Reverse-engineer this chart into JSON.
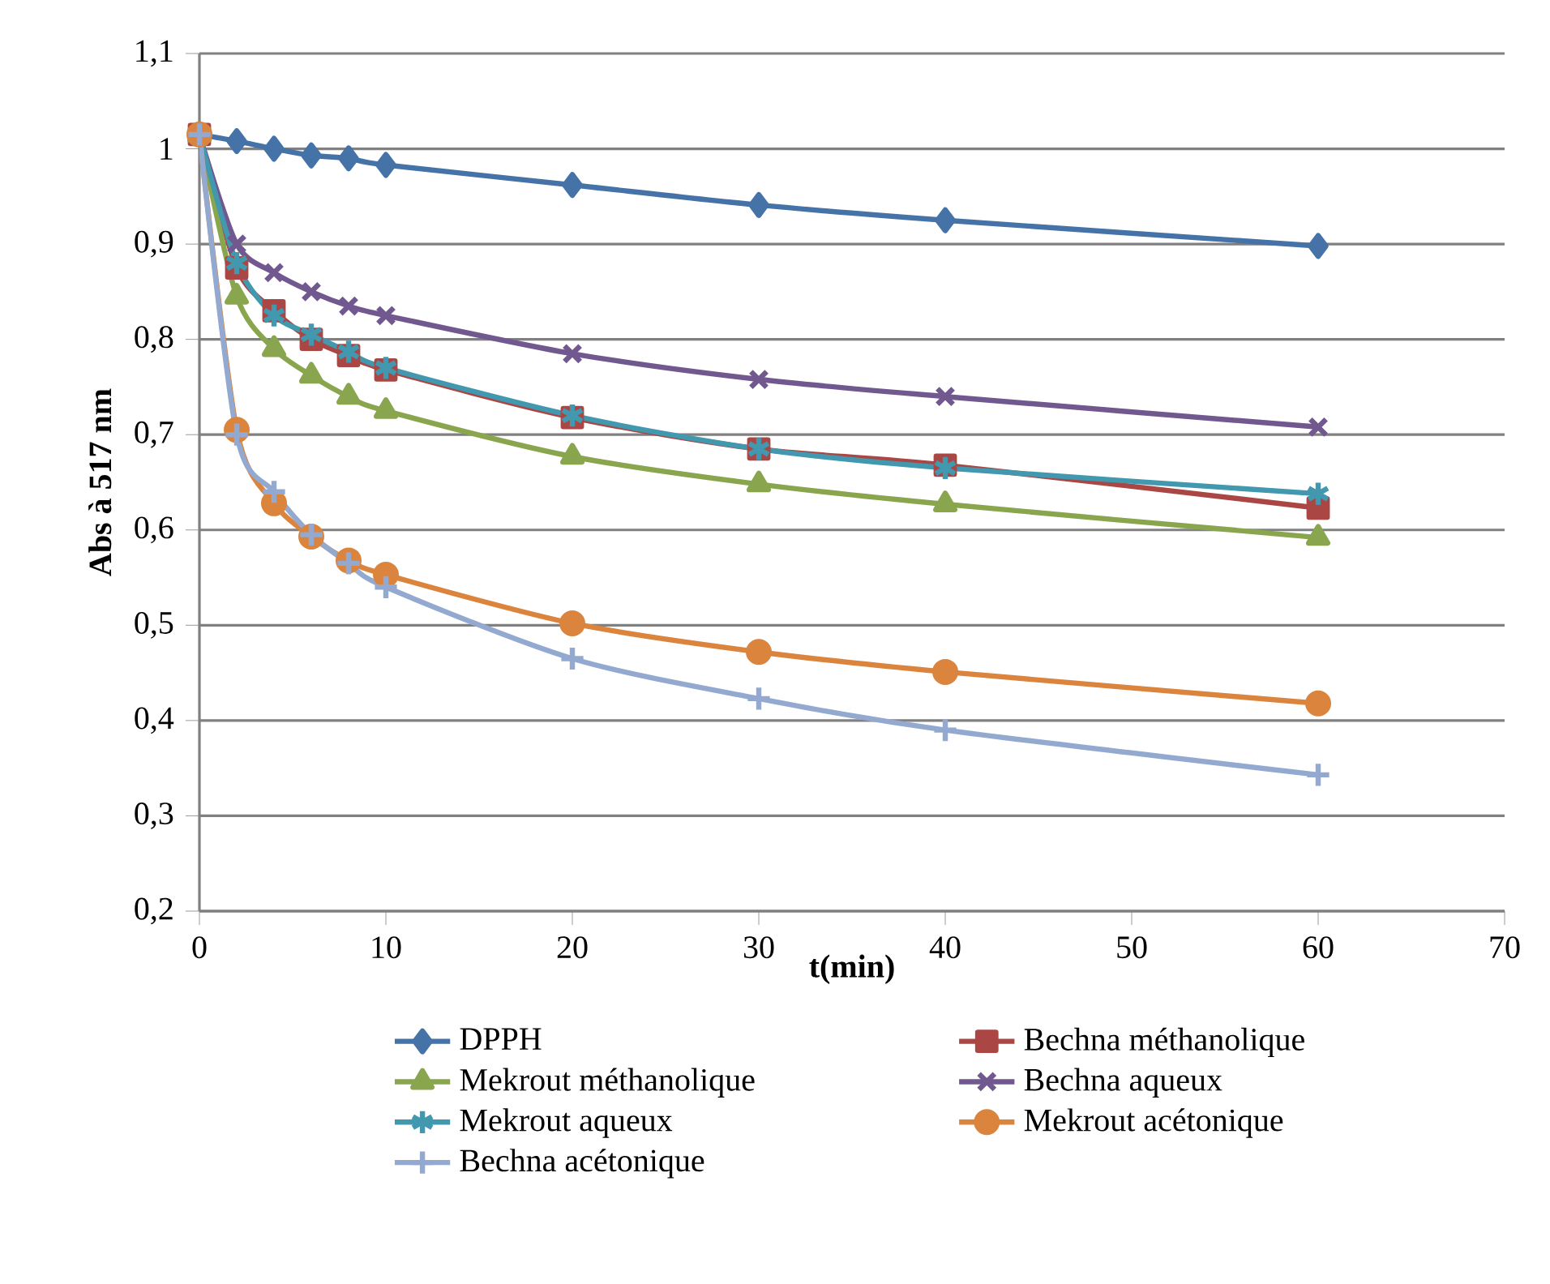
{
  "chart_data": {
    "type": "line",
    "xlabel": "t(min)",
    "ylabel": "Abs à 517 nm",
    "x": [
      0,
      2,
      4,
      6,
      8,
      10,
      20,
      30,
      40,
      60
    ],
    "xlim": [
      0,
      70
    ],
    "xticks": [
      0,
      10,
      20,
      30,
      40,
      50,
      60,
      70
    ],
    "ylim": [
      0.2,
      1.1
    ],
    "yticks": [
      {
        "value": 0.2,
        "label": "0,2"
      },
      {
        "value": 0.3,
        "label": "0,3"
      },
      {
        "value": 0.4,
        "label": "0,4"
      },
      {
        "value": 0.5,
        "label": "0,5"
      },
      {
        "value": 0.6,
        "label": "0,6"
      },
      {
        "value": 0.7,
        "label": "0,7"
      },
      {
        "value": 0.8,
        "label": "0,8"
      },
      {
        "value": 0.9,
        "label": "0,9"
      },
      {
        "value": 1,
        "label": "1"
      },
      {
        "value": 1.1,
        "label": "1,1"
      }
    ],
    "grid": "y",
    "legend": "bottom",
    "series": [
      {
        "name": "DPPH",
        "color": "#4572a7",
        "marker": "diamond",
        "values": [
          1.015,
          1.008,
          1.0,
          0.993,
          0.99,
          0.983,
          0.962,
          0.941,
          0.925,
          0.898
        ]
      },
      {
        "name": "Bechna méthanolique",
        "color": "#aa4643",
        "marker": "square",
        "values": [
          1.015,
          0.875,
          0.83,
          0.8,
          0.783,
          0.768,
          0.718,
          0.685,
          0.668,
          0.623
        ]
      },
      {
        "name": "Mekrout méthanolique",
        "color": "#89a54e",
        "marker": "triangle",
        "values": [
          1.015,
          0.845,
          0.79,
          0.762,
          0.74,
          0.725,
          0.677,
          0.648,
          0.627,
          0.592
        ]
      },
      {
        "name": "Bechna aqueux",
        "color": "#71588f",
        "marker": "cross",
        "values": [
          1.015,
          0.9,
          0.87,
          0.85,
          0.835,
          0.825,
          0.785,
          0.758,
          0.74,
          0.708
        ]
      },
      {
        "name": "Mekrout aqueux",
        "color": "#4198af",
        "marker": "cross",
        "values": [
          1.015,
          0.88,
          0.825,
          0.805,
          0.787,
          0.77,
          0.72,
          0.685,
          0.665,
          0.638
        ]
      },
      {
        "name": "Mekrout acétonique",
        "color": "#db843d",
        "marker": "circle",
        "values": [
          1.015,
          0.705,
          0.628,
          0.593,
          0.568,
          0.553,
          0.502,
          0.472,
          0.451,
          0.418
        ]
      },
      {
        "name": "Bechna acétonique",
        "color": "#93a9cf",
        "marker": "plus",
        "values": [
          1.015,
          0.7,
          0.64,
          0.595,
          0.565,
          0.54,
          0.465,
          0.423,
          0.39,
          0.343
        ]
      }
    ]
  }
}
